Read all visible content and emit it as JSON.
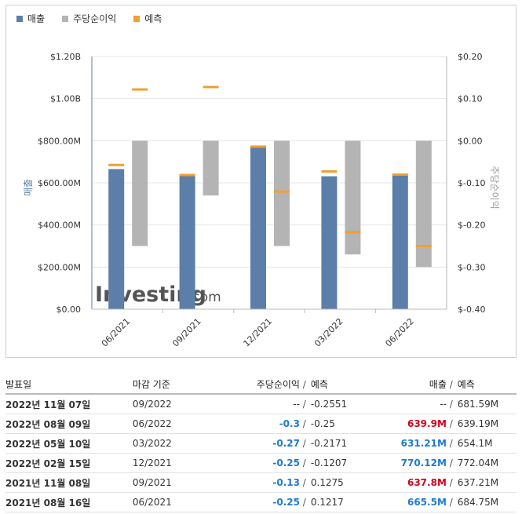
{
  "legend": {
    "revenue": "매출",
    "eps": "주당순이익",
    "forecast": "예측"
  },
  "colors": {
    "revenue": "#5b7fa8",
    "eps": "#b4b4b4",
    "forecast": "#f0a030"
  },
  "watermark": {
    "brand": "Investing",
    "suffix": ".com"
  },
  "chart_data": {
    "type": "bar",
    "categories": [
      "06/2021",
      "09/2021",
      "12/2021",
      "03/2022",
      "06/2022"
    ],
    "ylabel": "매출",
    "y2label": "주당순이익",
    "ylim": [
      0,
      1200000000
    ],
    "y2lim": [
      -0.4,
      0.2
    ],
    "yticks": [
      "$0.00",
      "$200.00M",
      "$400.00M",
      "$600.00M",
      "$800.00M",
      "$1.00B",
      "$1.20B"
    ],
    "y2ticks": [
      "$-0.40",
      "$-0.30",
      "$-0.20",
      "$-0.10",
      "$0.00",
      "$0.10",
      "$0.20"
    ],
    "grid": true,
    "legend_position": "top-left",
    "series": [
      {
        "name": "매출",
        "axis": "left",
        "values": [
          665500000,
          637800000,
          770120000,
          631210000,
          639900000
        ]
      },
      {
        "name": "매출 예측",
        "axis": "left",
        "values": [
          684750000,
          637210000,
          772040000,
          654100000,
          639190000
        ]
      },
      {
        "name": "주당순이익",
        "axis": "right",
        "values": [
          -0.25,
          -0.13,
          -0.25,
          -0.27,
          -0.3
        ]
      },
      {
        "name": "주당순이익 예측",
        "axis": "right",
        "values": [
          0.1217,
          0.1275,
          -0.1207,
          -0.2171,
          -0.25
        ]
      }
    ]
  },
  "table": {
    "headers": {
      "date": "발표일",
      "period": "마감 기준",
      "eps": "주당순이익",
      "eps_fc": "예측",
      "rev": "매출",
      "rev_fc": "예측",
      "slash": "/"
    },
    "rows": [
      {
        "date": "2022년 11월 07일",
        "period": "09/2022",
        "eps": "--",
        "eps_fc": "-0.2551",
        "rev": "--",
        "rev_fc": "681.59M",
        "eps_status": "neu",
        "rev_status": "neu"
      },
      {
        "date": "2022년 08월 09일",
        "period": "06/2022",
        "eps": "-0.3",
        "eps_fc": "-0.25",
        "rev": "639.9M",
        "rev_fc": "639.19M",
        "eps_status": "pos",
        "rev_status": "neg"
      },
      {
        "date": "2022년 05월 10일",
        "period": "03/2022",
        "eps": "-0.27",
        "eps_fc": "-0.2171",
        "rev": "631.21M",
        "rev_fc": "654.1M",
        "eps_status": "pos",
        "rev_status": "pos"
      },
      {
        "date": "2022년 02월 15일",
        "period": "12/2021",
        "eps": "-0.25",
        "eps_fc": "-0.1207",
        "rev": "770.12M",
        "rev_fc": "772.04M",
        "eps_status": "pos",
        "rev_status": "pos"
      },
      {
        "date": "2021년 11월 08일",
        "period": "09/2021",
        "eps": "-0.13",
        "eps_fc": "0.1275",
        "rev": "637.8M",
        "rev_fc": "637.21M",
        "eps_status": "pos",
        "rev_status": "neg"
      },
      {
        "date": "2021년 08월 16일",
        "period": "06/2021",
        "eps": "-0.25",
        "eps_fc": "0.1217",
        "rev": "665.5M",
        "rev_fc": "684.75M",
        "eps_status": "pos",
        "rev_status": "pos"
      }
    ]
  }
}
